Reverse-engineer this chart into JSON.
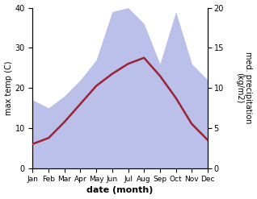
{
  "months": [
    "Jan",
    "Feb",
    "Mar",
    "Apr",
    "May",
    "Jun",
    "Jul",
    "Aug",
    "Sep",
    "Oct",
    "Nov",
    "Dec"
  ],
  "max_temp": [
    6.0,
    7.5,
    11.5,
    16.0,
    20.5,
    23.5,
    26.0,
    27.5,
    23.0,
    17.5,
    11.0,
    7.0
  ],
  "precipitation": [
    8.5,
    7.5,
    9.0,
    11.0,
    13.5,
    19.5,
    20.0,
    18.0,
    13.0,
    19.5,
    13.0,
    11.0
  ],
  "temp_color": "#9B2335",
  "precip_fill_color": "#b3b9e8",
  "precip_fill_alpha": 0.9,
  "ylabel_left": "max temp (C)",
  "ylabel_right": "med. precipitation\n(kg/m2)",
  "xlabel": "date (month)",
  "ylim_left": [
    0,
    40
  ],
  "ylim_right": [
    0,
    20
  ],
  "yticks_left": [
    0,
    10,
    20,
    30,
    40
  ],
  "yticks_right": [
    0,
    5,
    10,
    15,
    20
  ],
  "bg_color": "#ffffff"
}
